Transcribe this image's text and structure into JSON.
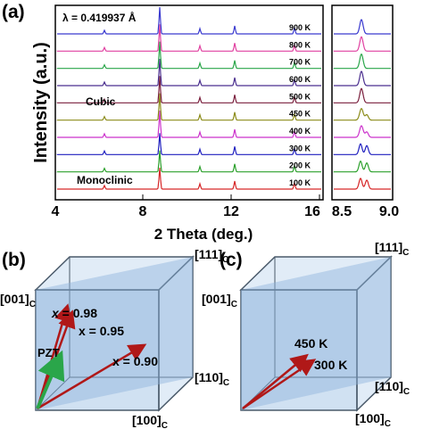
{
  "panel_a": {
    "label": "(a)",
    "wavelength": "λ = 0.419937 Å",
    "phase_cubic": "Cubic",
    "phase_monoclinic": "Monoclinic",
    "ylabel": "Intensity (a.u.)",
    "xlabel": "2 Theta (deg.)",
    "xticks_main": [
      "4",
      "8",
      "12",
      "16"
    ],
    "xticks_zoom": [
      "8.5",
      "9.0"
    ],
    "series": [
      {
        "temp": "100 K",
        "color": "#d62728"
      },
      {
        "temp": "200 K",
        "color": "#2ca02c"
      },
      {
        "temp": "300 K",
        "color": "#1f1fbf"
      },
      {
        "temp": "400 K",
        "color": "#cc33cc"
      },
      {
        "temp": "450 K",
        "color": "#8c8c1a"
      },
      {
        "temp": "500 K",
        "color": "#7a1f3d"
      },
      {
        "temp": "600 K",
        "color": "#4b2f8f"
      },
      {
        "temp": "700 K",
        "color": "#2aa64a"
      },
      {
        "temp": "800 K",
        "color": "#e040a0"
      },
      {
        "temp": "900 K",
        "color": "#3a3acf"
      }
    ]
  },
  "panel_b": {
    "label": "(b)",
    "axis_111": "[111]C",
    "axis_001": "[001]C",
    "axis_110": "[110]C",
    "axis_100": "[100]C",
    "vec_098": "x = 0.98",
    "vec_095": "x = 0.95",
    "vec_090": "x = 0.90",
    "vec_pzt": "PZT"
  },
  "panel_c": {
    "label": "(c)",
    "axis_111": "[111]C",
    "axis_001": "[001]C",
    "axis_110": "[110]C",
    "axis_100": "[100]C",
    "vec_450": "450 K",
    "vec_300": "300 K"
  },
  "colors": {
    "cube_fill": "#aac8e8",
    "cube_edge": "#4a5a6a",
    "arrow_red": "#b01818",
    "arrow_green": "#2aa64a"
  }
}
